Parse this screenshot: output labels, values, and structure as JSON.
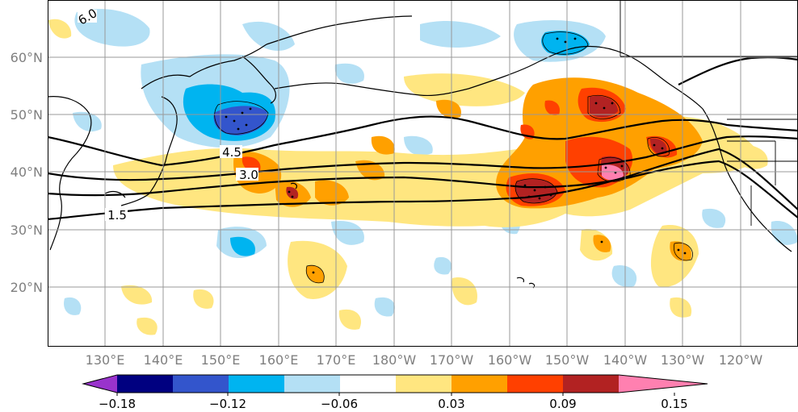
{
  "map": {
    "lat_labels": [
      "60°N",
      "50°N",
      "40°N",
      "30°N",
      "20°N"
    ],
    "lon_labels": [
      "130°E",
      "140°E",
      "150°E",
      "160°E",
      "170°E",
      "180°W",
      "170°W",
      "160°W",
      "150°W",
      "140°W",
      "130°W",
      "120°W"
    ],
    "contour_labels": [
      "6.0",
      "4.5",
      "3.0",
      "1.5"
    ]
  },
  "colorbar": {
    "tick_labels": [
      "−0.18",
      "−0.12",
      "−0.06",
      "0.03",
      "0.09",
      "0.15"
    ],
    "levels": [
      -0.18,
      -0.15,
      -0.12,
      -0.09,
      -0.06,
      -0.03,
      0.03,
      0.06,
      0.09,
      0.12,
      0.15,
      0.18
    ],
    "colors": [
      "#9933cc",
      "#000080",
      "#3355cc",
      "#00b4f0",
      "#b4e0f5",
      "#ffffff",
      "#ffe680",
      "#ffa000",
      "#ff4000",
      "#b22222",
      "#ff80b0"
    ],
    "extend": "both"
  },
  "anomaly_colors": {
    "light_blue": "#b4e0f5",
    "blue": "#00b4f0",
    "medium_blue": "#3355cc",
    "dark_blue": "#000080",
    "yellow": "#ffe680",
    "orange": "#ffa000",
    "red_orange": "#ff4000",
    "dark_red": "#b22222",
    "pink": "#ff80b0"
  }
}
